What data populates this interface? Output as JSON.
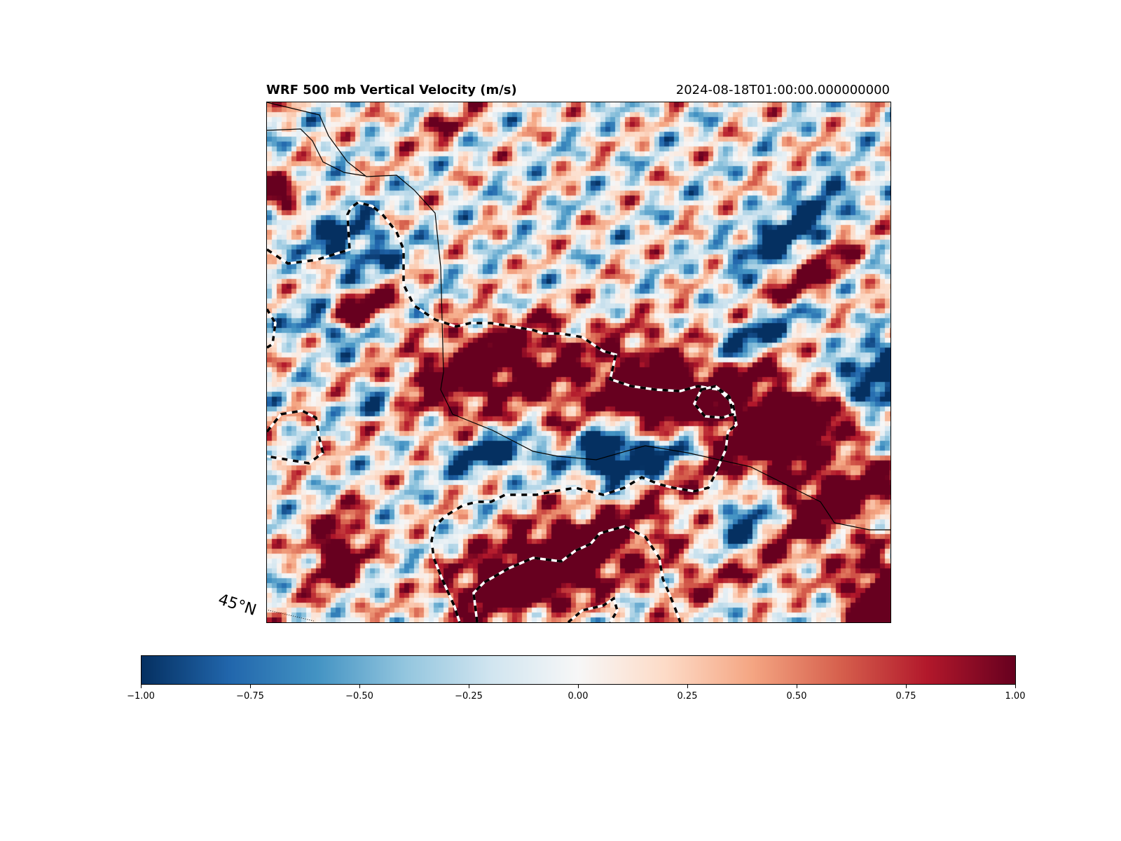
{
  "figure": {
    "title": "WRF 500 mb Vertical Velocity (m/s)",
    "timestamp": "2024-08-18T01:00:00.000000000"
  },
  "map": {
    "field": "vertical velocity",
    "colormap": "RdBu_r",
    "color_range": [
      -1.0,
      1.0
    ],
    "contours": "dashed black/white outline around strong ascent regions",
    "boundaries": "thin black state/country lines",
    "latitude_label": "45°N"
  },
  "colorbar": {
    "ticks": [
      "−1.00",
      "−0.75",
      "−0.50",
      "−0.25",
      "0.00",
      "0.25",
      "0.50",
      "0.75",
      "1.00"
    ],
    "tick_values": [
      -1.0,
      -0.75,
      -0.5,
      -0.25,
      0.0,
      0.25,
      0.5,
      0.75,
      1.0
    ],
    "colors": [
      "#053061",
      "#2166ac",
      "#4393c3",
      "#92c5de",
      "#d1e5f0",
      "#f7f7f7",
      "#fddbc7",
      "#f4a582",
      "#d6604d",
      "#b2182b",
      "#67001f"
    ]
  }
}
